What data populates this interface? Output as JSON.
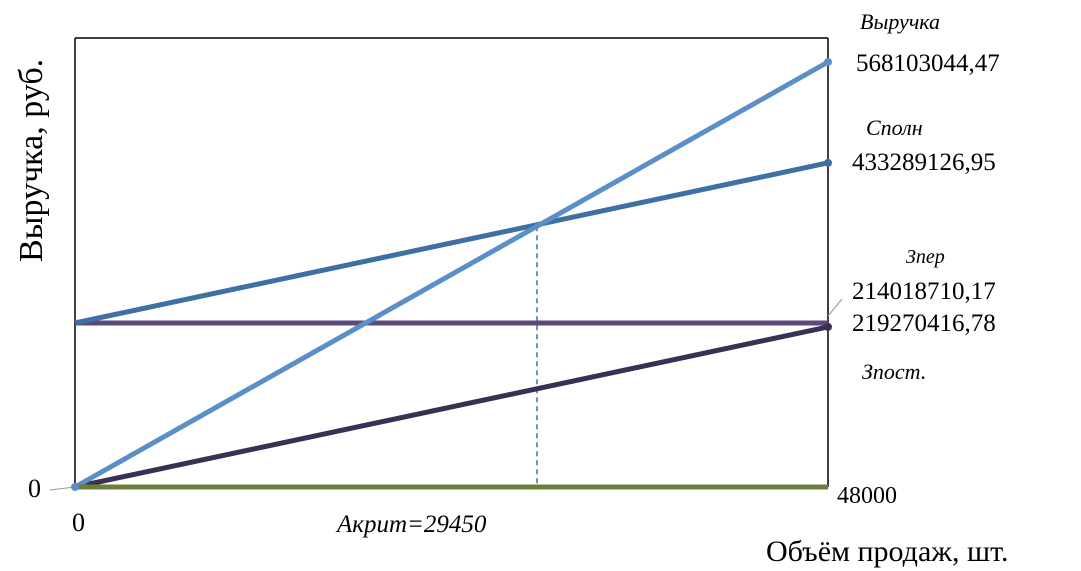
{
  "chart_data": {
    "type": "line",
    "ylabel": "Выручка, руб.",
    "xlabel": "Объём продаж, шт.",
    "x_tick_labels": {
      "start": "0",
      "end": "48000"
    },
    "y_tick_label": "0",
    "xlim": [
      0,
      48000
    ],
    "ylim": [
      0,
      600000000
    ],
    "critical_point": {
      "label": "Акрит=29450",
      "x": 29450,
      "y": 348600000
    },
    "series": [
      {
        "name": "Выручка",
        "value_label": "568103044,47",
        "color": "#5b8fc7",
        "x": [
          0,
          48000
        ],
        "y": [
          0,
          568103044.47
        ]
      },
      {
        "name": "Сполн",
        "value_label": "433289126,95",
        "color": "#3f6fa3",
        "x": [
          0,
          48000
        ],
        "y": [
          219270416.78,
          433289126.95
        ]
      },
      {
        "name": "Зпер",
        "value_label": "214018710,17",
        "color": "#3a2f55",
        "x": [
          0,
          48000
        ],
        "y": [
          0,
          214018710.17
        ]
      },
      {
        "name": "Зпост.",
        "value_label": "219270416,78",
        "color": "#5d4a7a",
        "x": [
          0,
          48000
        ],
        "y": [
          219270416.78,
          219270416.78
        ]
      }
    ],
    "baseline": {
      "color": "#6b7f3a"
    },
    "grid": false
  }
}
